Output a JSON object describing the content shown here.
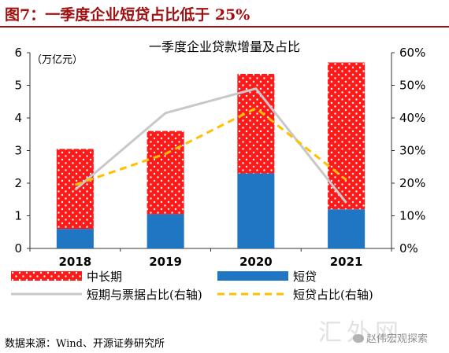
{
  "figure": {
    "title": "图7：一季度企业短贷占比低于 25%",
    "source": "数据来源：Wind、开源证券研究所",
    "watermark_left": "汇外网",
    "watermark_right": "赵伟宏观探索"
  },
  "chart_data": {
    "type": "bar",
    "title": "一季度企业贷款增量及占比",
    "y_unit_label": "（万亿元）",
    "categories": [
      "2018",
      "2019",
      "2020",
      "2021"
    ],
    "stacked": true,
    "series": [
      {
        "name": "短贷",
        "kind": "bar",
        "axis": "left",
        "color": "#1f77c4",
        "values": [
          0.6,
          1.05,
          2.3,
          1.2
        ]
      },
      {
        "name": "中长期",
        "kind": "bar",
        "axis": "left",
        "color": "#ff1a1a",
        "pattern": "white-dots",
        "values": [
          2.45,
          2.55,
          3.05,
          4.5
        ]
      },
      {
        "name": "短期与票据占比(右轴)",
        "kind": "line",
        "axis": "right",
        "color": "#c8c8c8",
        "style": "solid",
        "values": [
          0.18,
          0.415,
          0.49,
          0.14
        ]
      },
      {
        "name": "短贷占比(右轴)",
        "kind": "line",
        "axis": "right",
        "color": "#ffc000",
        "style": "dashed",
        "values": [
          0.195,
          0.29,
          0.43,
          0.21
        ]
      }
    ],
    "legend_order": [
      "中长期",
      "短贷",
      "短期与票据占比(右轴)",
      "短贷占比(右轴)"
    ],
    "left_axis": {
      "ylim": [
        0,
        6
      ],
      "ticks": [
        "0",
        "1",
        "2",
        "3",
        "4",
        "5",
        "6"
      ]
    },
    "right_axis": {
      "ylim": [
        0,
        0.6
      ],
      "ticks": [
        "0%",
        "10%",
        "20%",
        "30%",
        "40%",
        "50%",
        "60%"
      ]
    },
    "grid": false,
    "legend_position": "bottom"
  }
}
